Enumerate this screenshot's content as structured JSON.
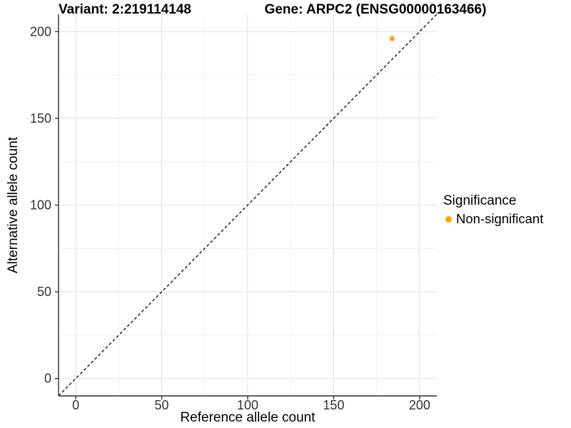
{
  "header": {
    "variant_title": "Variant: 2:219114148",
    "gene_title": "Gene: ARPC2 (ENSG00000163466)"
  },
  "chart_data": {
    "type": "scatter",
    "title": "Variant: 2:219114148   Gene: ARPC2 (ENSG00000163466)",
    "xlabel": "Reference allele count",
    "ylabel": "Alternative allele count",
    "xlim": [
      -10,
      210
    ],
    "ylim": [
      -10,
      210
    ],
    "x_ticks": [
      0,
      50,
      100,
      150,
      200
    ],
    "y_ticks": [
      0,
      50,
      100,
      150,
      200
    ],
    "x_minor_ticks": [
      25,
      75,
      125,
      175
    ],
    "y_minor_ticks": [
      25,
      75,
      125,
      175
    ],
    "grid": "major+minor",
    "series": [
      {
        "name": "Non-significant",
        "color": "#FFA500",
        "points": [
          {
            "x": 184,
            "y": 196
          }
        ]
      }
    ],
    "reference_line": {
      "slope": 1,
      "intercept": 0,
      "style": "dashed",
      "color": "#111111",
      "meaning": "identity line y = x"
    },
    "legend": {
      "title": "Significance",
      "position": "right",
      "entries": [
        {
          "label": "Non-significant",
          "color": "#FFA500"
        }
      ]
    }
  },
  "colors": {
    "background": "#ffffff",
    "grid_major": "#e3e3e3",
    "grid_minor": "#f0f0f0",
    "axis_line": "#4a4a4a",
    "tick_mark": "#333333",
    "tick_label": "#333333",
    "axis_title": "#000000",
    "title_text": "#000000",
    "point": "#FFA500"
  }
}
